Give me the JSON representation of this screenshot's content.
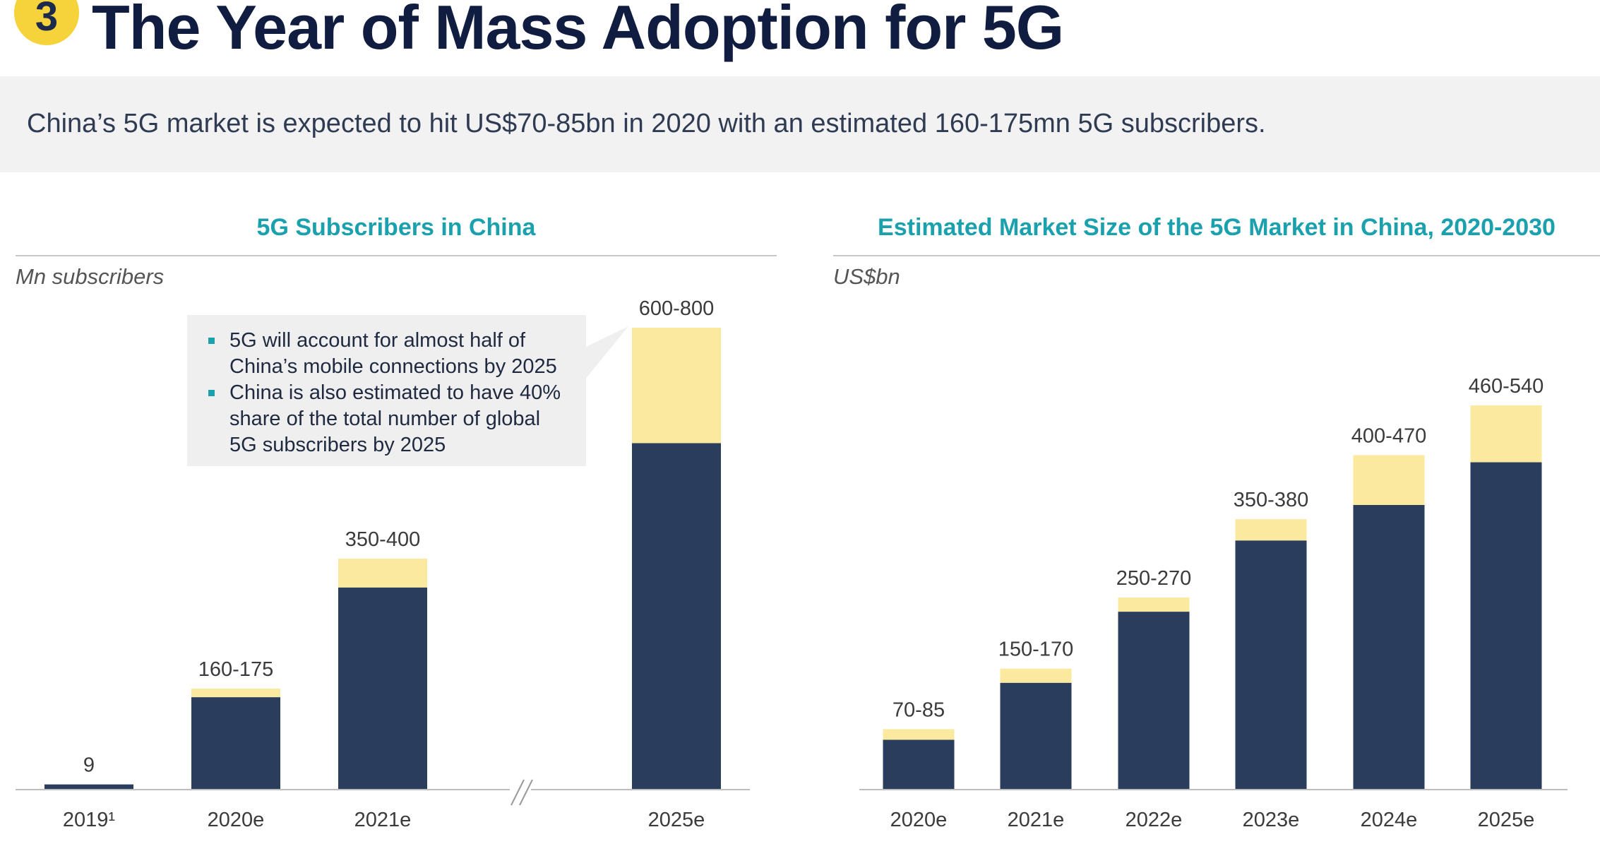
{
  "header": {
    "badge": "3",
    "title": "The Year of Mass Adoption for 5G",
    "subtitle": "China’s 5G market is expected to hit US$70-85bn in 2020 with an estimated 160-175mn 5G subscribers."
  },
  "colors": {
    "navy": "#2a3d5c",
    "yellow": "#fbe9a0",
    "teal": "#1aa1ad"
  },
  "callout": {
    "items": [
      "5G will account for almost half of China’s mobile connections by 2025",
      "China is also estimated to have 40% share of the total number of global 5G subscribers by 2025"
    ]
  },
  "chart_data": [
    {
      "type": "bar",
      "title": "5G Subscribers in China",
      "ylabel": "Mn subscribers",
      "categories": [
        "2019¹",
        "2020e",
        "2021e",
        "2025e"
      ],
      "axis_break_between": [
        "2021e",
        "2025e"
      ],
      "series": [
        {
          "values": [
            9,
            160,
            350,
            600
          ]
        },
        {
          "values": [
            0,
            15,
            50,
            200
          ]
        }
      ],
      "data_labels": [
        "9",
        "160-175",
        "350-400",
        "600-800"
      ],
      "ylim": [
        0,
        800
      ]
    },
    {
      "type": "bar",
      "title": "Estimated Market Size of the 5G Market in China, 2020-2030",
      "ylabel": "US$bn",
      "categories": [
        "2020e",
        "2021e",
        "2022e",
        "2023e",
        "2024e",
        "2025e"
      ],
      "series": [
        {
          "values": [
            70,
            150,
            250,
            350,
            400,
            460
          ]
        },
        {
          "values": [
            15,
            20,
            20,
            30,
            70,
            80
          ]
        }
      ],
      "data_labels": [
        "70-85",
        "150-170",
        "250-270",
        "350-380",
        "400-470",
        "460-540"
      ],
      "ylim": [
        0,
        540
      ]
    }
  ]
}
